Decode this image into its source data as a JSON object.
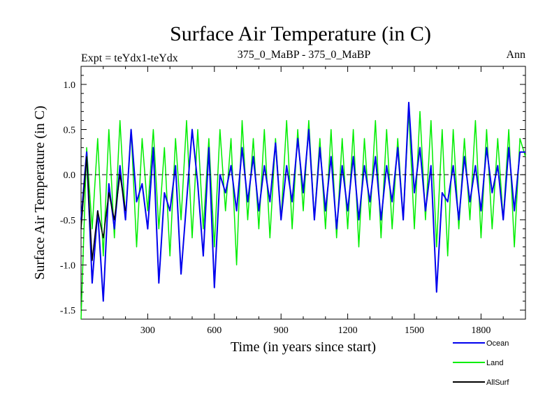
{
  "chart_data": {
    "type": "line",
    "title": "Surface Air Temperature (in C)",
    "subtitle_left": "Expt = teYdx1-teYdx",
    "subtitle_center": "375_0_MaBP - 375_0_MaBP",
    "subtitle_right": "Ann",
    "xlabel": "Time (in years since start)",
    "ylabel": "Surface Air Temperature (in C)",
    "xlim": [
      0,
      2000
    ],
    "ylim": [
      -1.6,
      1.2
    ],
    "xticks": [
      300,
      600,
      900,
      1200,
      1500,
      1800
    ],
    "xtick_labels": [
      "300",
      "600",
      "900",
      "1200",
      "1500",
      "1800"
    ],
    "yticks": [
      1.0,
      0.5,
      0.0,
      -0.5,
      -1.0,
      -1.5
    ],
    "ytick_labels": [
      "1.0",
      "0.5",
      "0.0",
      "-0.5",
      "-1.0",
      "-1.5"
    ],
    "zero_line": true,
    "legend": "bottom-right",
    "series": [
      {
        "name": "Land",
        "color": "#00ee00",
        "x": [
          0,
          25,
          50,
          75,
          100,
          125,
          150,
          175,
          200,
          225,
          250,
          275,
          300,
          325,
          350,
          375,
          400,
          425,
          450,
          475,
          500,
          525,
          550,
          575,
          600,
          625,
          650,
          675,
          700,
          725,
          750,
          775,
          800,
          825,
          850,
          875,
          900,
          925,
          950,
          975,
          1000,
          1025,
          1050,
          1075,
          1100,
          1125,
          1150,
          1175,
          1200,
          1225,
          1250,
          1275,
          1300,
          1325,
          1350,
          1375,
          1400,
          1425,
          1450,
          1475,
          1500,
          1525,
          1550,
          1575,
          1600,
          1625,
          1650,
          1675,
          1700,
          1725,
          1750,
          1775,
          1800,
          1825,
          1850,
          1875,
          1900,
          1925,
          1950,
          1975,
          2000
        ],
        "values": [
          -1.6,
          0.3,
          -0.6,
          0.4,
          -0.9,
          0.5,
          -0.7,
          0.6,
          -0.5,
          0.5,
          -0.8,
          0.4,
          -0.4,
          0.5,
          -0.6,
          0.3,
          -0.9,
          0.4,
          -0.5,
          0.6,
          -0.7,
          0.5,
          -0.6,
          0.4,
          -0.8,
          0.5,
          -0.4,
          0.4,
          -1.0,
          0.6,
          -0.5,
          0.4,
          -0.6,
          0.5,
          -0.7,
          0.4,
          -0.5,
          0.6,
          -0.6,
          0.5,
          -0.4,
          0.6,
          -0.5,
          0.4,
          -0.6,
          0.5,
          -0.7,
          0.4,
          -0.6,
          0.5,
          -0.8,
          0.4,
          -0.5,
          0.6,
          -0.7,
          0.5,
          -0.6,
          0.4,
          -0.5,
          0.7,
          -0.6,
          0.7,
          -0.5,
          0.6,
          -0.8,
          0.5,
          -0.9,
          0.5,
          -0.6,
          0.4,
          -0.5,
          0.6,
          -0.7,
          0.5,
          -0.6,
          0.4,
          -0.5,
          0.5,
          -0.8,
          0.4,
          0.2
        ]
      },
      {
        "name": "Ocean",
        "color": "#0000ee",
        "x": [
          0,
          25,
          50,
          75,
          100,
          125,
          150,
          175,
          200,
          225,
          250,
          275,
          300,
          325,
          350,
          375,
          400,
          425,
          450,
          475,
          500,
          525,
          550,
          575,
          600,
          625,
          650,
          675,
          700,
          725,
          750,
          775,
          800,
          825,
          850,
          875,
          900,
          925,
          950,
          975,
          1000,
          1025,
          1050,
          1075,
          1100,
          1125,
          1150,
          1175,
          1200,
          1225,
          1250,
          1275,
          1300,
          1325,
          1350,
          1375,
          1400,
          1425,
          1450,
          1475,
          1500,
          1525,
          1550,
          1575,
          1600,
          1625,
          1650,
          1675,
          1700,
          1725,
          1750,
          1775,
          1800,
          1825,
          1850,
          1875,
          1900,
          1925,
          1950,
          1975,
          2000
        ],
        "values": [
          -0.5,
          0.25,
          -1.2,
          -0.4,
          -1.4,
          -0.1,
          -0.6,
          0.1,
          -0.5,
          0.5,
          -0.3,
          -0.1,
          -0.6,
          0.3,
          -1.2,
          -0.2,
          -0.4,
          0.1,
          -1.1,
          -0.3,
          0.5,
          -0.1,
          -0.9,
          0.3,
          -1.25,
          0.0,
          -0.2,
          0.1,
          -0.4,
          0.3,
          -0.3,
          0.2,
          -0.4,
          0.1,
          -0.3,
          0.35,
          -0.5,
          0.1,
          -0.3,
          0.4,
          -0.2,
          0.5,
          -0.5,
          0.3,
          -0.4,
          0.2,
          -0.6,
          0.1,
          -0.4,
          0.2,
          -0.5,
          0.1,
          -0.3,
          0.2,
          -0.5,
          0.1,
          -0.3,
          0.3,
          -0.5,
          0.8,
          -0.2,
          0.3,
          -0.4,
          0.1,
          -1.3,
          -0.2,
          -0.3,
          0.1,
          -0.5,
          0.2,
          -0.3,
          0.1,
          -0.4,
          0.3,
          -0.2,
          0.1,
          -0.5,
          0.3,
          -0.4,
          0.25,
          0.25
        ]
      },
      {
        "name": "AllSurf",
        "color": "#000000",
        "x": [
          0,
          25,
          50,
          75,
          100,
          125,
          150,
          175,
          200
        ],
        "values": [
          -0.6,
          0.2,
          -0.95,
          -0.4,
          -0.7,
          -0.2,
          -0.5,
          0.0,
          -0.4
        ]
      }
    ]
  }
}
